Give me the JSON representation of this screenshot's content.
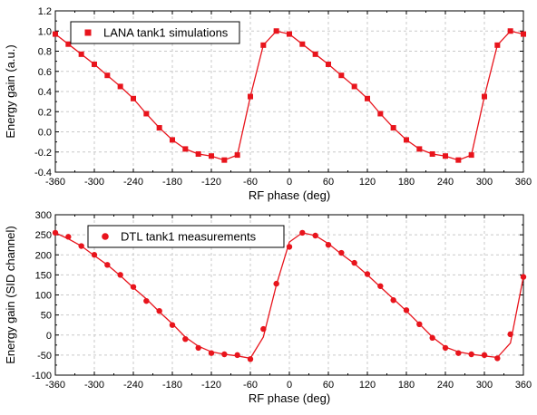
{
  "chart_data": [
    {
      "type": "line",
      "xlabel": "RF phase (deg)",
      "ylabel": "Energy gain (a.u.)",
      "xlim": [
        -360,
        360
      ],
      "ylim": [
        -0.4,
        1.2
      ],
      "xticks": [
        -360,
        -300,
        -240,
        -180,
        -120,
        -60,
        0,
        60,
        120,
        180,
        240,
        300,
        360
      ],
      "xtick_labels": [
        "-360",
        "-300",
        "-240",
        "-180",
        "-120",
        "-60",
        "0",
        "60",
        "120",
        "180",
        "240",
        "300",
        "360"
      ],
      "yticks": [
        -0.4,
        -0.2,
        0.0,
        0.2,
        0.4,
        0.6,
        0.8,
        1.0,
        1.2
      ],
      "ytick_labels": [
        "-0.4",
        "-0.2",
        "0.0",
        "0.2",
        "0.4",
        "0.6",
        "0.8",
        "1.0",
        "1.2"
      ],
      "grid": true,
      "legend_position": "top-left",
      "color": "#e8141c",
      "series": [
        {
          "name": "LANA tank1 simulations",
          "marker": "square",
          "x": [
            -360,
            -340,
            -320,
            -300,
            -280,
            -260,
            -240,
            -220,
            -200,
            -180,
            -160,
            -140,
            -120,
            -100,
            -80,
            -60,
            -40,
            -20,
            0,
            20,
            40,
            60,
            80,
            100,
            120,
            140,
            160,
            180,
            200,
            220,
            240,
            260,
            280,
            300,
            320,
            340,
            360
          ],
          "y": [
            0.97,
            0.87,
            0.77,
            0.67,
            0.56,
            0.45,
            0.33,
            0.18,
            0.04,
            -0.08,
            -0.17,
            -0.22,
            -0.24,
            -0.28,
            -0.23,
            0.35,
            0.86,
            1.0,
            0.97,
            0.87,
            0.77,
            0.67,
            0.56,
            0.45,
            0.33,
            0.18,
            0.04,
            -0.08,
            -0.17,
            -0.22,
            -0.24,
            -0.28,
            -0.23,
            0.35,
            0.86,
            1.0,
            0.97
          ]
        }
      ]
    },
    {
      "type": "line",
      "xlabel": "RF phase (deg)",
      "ylabel": "Energy gain (SID channel)",
      "xlim": [
        -360,
        360
      ],
      "ylim": [
        -100,
        300
      ],
      "xticks": [
        -360,
        -300,
        -240,
        -180,
        -120,
        -60,
        0,
        60,
        120,
        180,
        240,
        300,
        360
      ],
      "xtick_labels": [
        "-360",
        "-300",
        "-240",
        "-180",
        "-120",
        "-60",
        "0",
        "60",
        "120",
        "180",
        "240",
        "300",
        "360"
      ],
      "yticks": [
        -100,
        -50,
        0,
        50,
        100,
        150,
        200,
        250,
        300
      ],
      "ytick_labels": [
        "-100",
        "-50",
        "0",
        "50",
        "100",
        "150",
        "200",
        "250",
        "300"
      ],
      "grid": true,
      "legend_position": "top-left",
      "color": "#e8141c",
      "series": [
        {
          "name": "DTL tank1 measurements",
          "marker": "circle",
          "x": [
            -360,
            -340,
            -320,
            -300,
            -280,
            -260,
            -240,
            -220,
            -200,
            -180,
            -160,
            -140,
            -120,
            -100,
            -80,
            -60,
            -40,
            -20,
            0,
            20,
            40,
            60,
            80,
            100,
            120,
            140,
            160,
            180,
            200,
            220,
            240,
            260,
            280,
            300,
            320,
            340,
            360
          ],
          "y": [
            255,
            245,
            222,
            200,
            175,
            150,
            120,
            85,
            60,
            25,
            -10,
            -32,
            -45,
            -48,
            -50,
            -60,
            15,
            128,
            220,
            255,
            248,
            225,
            205,
            180,
            152,
            122,
            87,
            62,
            27,
            -7,
            -32,
            -45,
            -48,
            -50,
            -58,
            2,
            145
          ],
          "fit_x": [
            -360,
            -340,
            -320,
            -300,
            -280,
            -260,
            -240,
            -220,
            -200,
            -180,
            -160,
            -140,
            -120,
            -100,
            -80,
            -60,
            -40,
            -20,
            0,
            20,
            40,
            60,
            80,
            100,
            120,
            140,
            160,
            180,
            200,
            220,
            240,
            260,
            280,
            300,
            320,
            340,
            360
          ],
          "fit_y": [
            255,
            240,
            222,
            198,
            175,
            148,
            118,
            90,
            58,
            28,
            -5,
            -28,
            -42,
            -48,
            -52,
            -58,
            -5,
            125,
            232,
            255,
            248,
            228,
            202,
            178,
            150,
            120,
            90,
            60,
            28,
            -5,
            -30,
            -42,
            -48,
            -52,
            -56,
            -20,
            145
          ]
        }
      ]
    }
  ]
}
